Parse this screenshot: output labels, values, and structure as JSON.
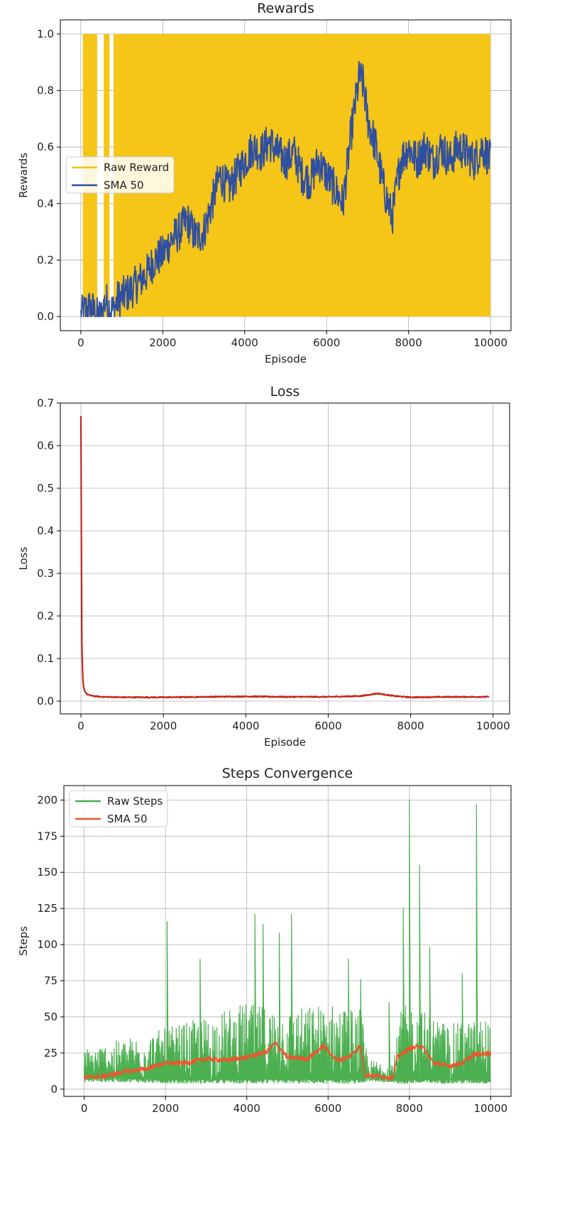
{
  "chart_data": [
    {
      "type": "line",
      "title": "Rewards",
      "xlabel": "Episode",
      "ylabel": "Rewards",
      "xlim": [
        -500,
        10500
      ],
      "ylim": [
        -0.05,
        1.05
      ],
      "xticks": [
        0,
        2000,
        4000,
        6000,
        8000,
        10000
      ],
      "yticks": [
        0.0,
        0.2,
        0.4,
        0.6,
        0.8,
        1.0
      ],
      "ytick_labels": [
        "0.0",
        "0.2",
        "0.4",
        "0.6",
        "0.8",
        "1.0"
      ],
      "grid": true,
      "legend": "center-left",
      "series": [
        {
          "name": "Raw Reward",
          "color": "#F5C518",
          "style": "band",
          "range": [
            0,
            1
          ],
          "x_start": 0,
          "x_end": 10000,
          "dense_from": 900,
          "bars_before": [
            [
              50,
              400
            ],
            [
              560,
              700
            ],
            [
              800,
              900
            ]
          ]
        },
        {
          "name": "SMA 50",
          "color": "#2F4FA0",
          "style": "line",
          "noise": 0.07,
          "x": [
            0,
            100,
            200,
            300,
            400,
            500,
            600,
            700,
            800,
            900,
            1000,
            1200,
            1400,
            1600,
            1800,
            2000,
            2200,
            2400,
            2600,
            2800,
            3000,
            3200,
            3400,
            3600,
            3800,
            4000,
            4200,
            4400,
            4600,
            4800,
            5000,
            5200,
            5400,
            5600,
            5800,
            6000,
            6200,
            6400,
            6600,
            6800,
            6900,
            7000,
            7200,
            7400,
            7600,
            7800,
            8000,
            8200,
            8400,
            8600,
            8800,
            9000,
            9200,
            9400,
            9600,
            9800,
            10000
          ],
          "y": [
            0.0,
            0.02,
            0.03,
            0.02,
            0.0,
            0.0,
            0.06,
            0.03,
            0.02,
            0.06,
            0.07,
            0.09,
            0.12,
            0.15,
            0.2,
            0.22,
            0.27,
            0.3,
            0.34,
            0.28,
            0.3,
            0.4,
            0.5,
            0.45,
            0.5,
            0.55,
            0.6,
            0.58,
            0.62,
            0.58,
            0.55,
            0.58,
            0.5,
            0.48,
            0.55,
            0.5,
            0.45,
            0.4,
            0.65,
            0.85,
            0.82,
            0.7,
            0.6,
            0.45,
            0.35,
            0.55,
            0.6,
            0.55,
            0.6,
            0.55,
            0.6,
            0.55,
            0.6,
            0.58,
            0.55,
            0.6,
            0.55
          ]
        }
      ]
    },
    {
      "type": "line",
      "title": "Loss",
      "xlabel": "Episode",
      "ylabel": "Loss",
      "xlim": [
        -500,
        10400
      ],
      "ylim": [
        -0.03,
        0.7
      ],
      "xticks": [
        0,
        2000,
        4000,
        6000,
        8000,
        10000
      ],
      "yticks": [
        0.0,
        0.1,
        0.2,
        0.3,
        0.4,
        0.5,
        0.6,
        0.7
      ],
      "ytick_labels": [
        "0.0",
        "0.1",
        "0.2",
        "0.3",
        "0.4",
        "0.5",
        "0.6",
        "0.7"
      ],
      "grid": true,
      "series": [
        {
          "color": "#C0281C",
          "style": "line",
          "noise": 0.004,
          "x": [
            0,
            10,
            20,
            40,
            60,
            100,
            150,
            200,
            300,
            500,
            1000,
            2000,
            3000,
            4000,
            5000,
            6000,
            6800,
            7200,
            7600,
            8000,
            9000,
            9900
          ],
          "y": [
            0.67,
            0.4,
            0.15,
            0.06,
            0.035,
            0.022,
            0.016,
            0.014,
            0.012,
            0.01,
            0.009,
            0.009,
            0.01,
            0.011,
            0.01,
            0.01,
            0.012,
            0.018,
            0.012,
            0.009,
            0.01,
            0.01
          ]
        }
      ]
    },
    {
      "type": "line",
      "title": "Steps Convergence",
      "xlabel": "",
      "ylabel": "Steps",
      "xlim": [
        -500,
        10500
      ],
      "ylim": [
        -5,
        210
      ],
      "xticks": [
        0,
        2000,
        4000,
        6000,
        8000,
        10000
      ],
      "yticks": [
        0,
        25,
        50,
        75,
        100,
        125,
        150,
        175,
        200
      ],
      "ytick_labels": [
        "0",
        "25",
        "50",
        "75",
        "100",
        "125",
        "150",
        "175",
        "200"
      ],
      "grid": true,
      "legend": "top-left",
      "series": [
        {
          "name": "Raw Steps",
          "color": "#4CAF50",
          "style": "spiky",
          "x": [
            0,
            1000,
            2000,
            3000,
            4000,
            5000,
            6000,
            6800,
            7000,
            7600,
            7800,
            8000,
            9000,
            10000
          ],
          "y_low": [
            5,
            5,
            4,
            4,
            4,
            4,
            4,
            4,
            5,
            5,
            3,
            4,
            4,
            4
          ],
          "y_high": [
            28,
            35,
            42,
            50,
            60,
            55,
            60,
            55,
            20,
            20,
            55,
            60,
            45,
            50
          ],
          "spikes": [
            [
              2040,
              116
            ],
            [
              2850,
              90
            ],
            [
              4200,
              121
            ],
            [
              4400,
              114
            ],
            [
              4800,
              108
            ],
            [
              5100,
              121
            ],
            [
              6500,
              90
            ],
            [
              6800,
              76
            ],
            [
              7500,
              60
            ],
            [
              7850,
              125
            ],
            [
              8000,
              200
            ],
            [
              8250,
              155
            ],
            [
              8500,
              98
            ],
            [
              9650,
              197
            ],
            [
              9300,
              80
            ]
          ]
        },
        {
          "name": "SMA 50",
          "color": "#F0542C",
          "style": "line",
          "noise": 1.6,
          "x": [
            0,
            500,
            1000,
            1500,
            2000,
            2500,
            3000,
            3500,
            4000,
            4500,
            4700,
            5000,
            5500,
            5900,
            6200,
            6500,
            6800,
            6900,
            7600,
            7700,
            8000,
            8300,
            8600,
            9000,
            9300,
            9600,
            10000
          ],
          "y": [
            8,
            9,
            12,
            14,
            18,
            18,
            21,
            20,
            22,
            26,
            32,
            22,
            21,
            30,
            20,
            22,
            30,
            10,
            8,
            22,
            28,
            30,
            18,
            16,
            18,
            24,
            25
          ]
        }
      ]
    }
  ]
}
